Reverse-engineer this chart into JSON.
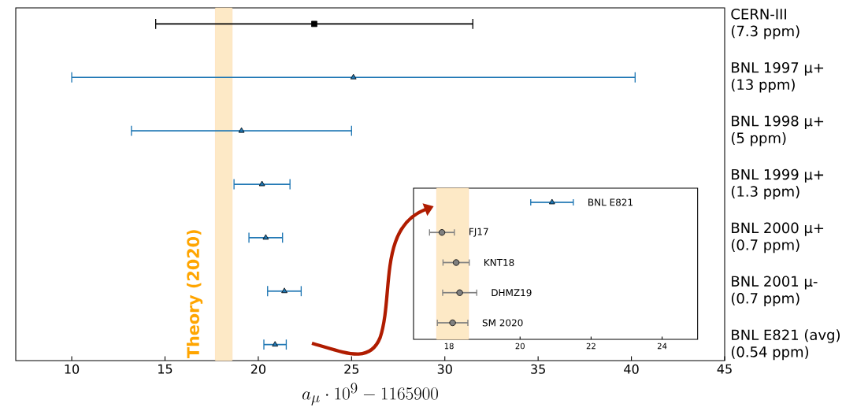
{
  "chart_data": [
    {
      "type": "scatter",
      "orientation": "horizontal",
      "categories": [
        "CERN-III\n(7.3 ppm)",
        "BNL 1997 μ+\n(13 ppm)",
        "BNL 1998 μ+\n(5 ppm)",
        "BNL 1999 μ+\n(1.3 ppm)",
        "BNL 2000 μ+\n(0.7 ppm)",
        "BNL 2001 μ-\n(0.7 ppm)",
        "BNL E821 (avg)\n(0.54 ppm)"
      ],
      "series": [
        {
          "color": "#000000",
          "marker": "square",
          "values": [
            23,
            null,
            null,
            null,
            null,
            null,
            null
          ],
          "errors": [
            8.5,
            null,
            null,
            null,
            null,
            null,
            null
          ]
        },
        {
          "color": "#1f77b4",
          "marker": "triangle",
          "values": [
            null,
            25.1,
            19.1,
            20.2,
            20.4,
            21.4,
            20.9
          ],
          "errors": [
            null,
            15.1,
            5.9,
            1.5,
            0.9,
            0.9,
            0.6
          ]
        }
      ],
      "xlabel": "a_\\mu \\cdot 10^9 - 1165900",
      "xlim": [
        7,
        45
      ],
      "xticks": [
        10,
        15,
        20,
        25,
        30,
        35,
        40,
        45
      ],
      "bands": [
        {
          "axis": "x",
          "from": 17.7,
          "to": 18.6,
          "label": "Theory (2020)",
          "color": "#fde9c6"
        }
      ]
    },
    {
      "type": "scatter",
      "orientation": "horizontal",
      "categories": [
        "BNL E821",
        "FJ17",
        "KNT18",
        "DHMZ19",
        "SM 2020"
      ],
      "series": [
        {
          "color": "#1f77b4",
          "marker": "triangle",
          "values": [
            20.9,
            null,
            null,
            null,
            null
          ],
          "errors": [
            0.6,
            null,
            null,
            null,
            null
          ]
        },
        {
          "color": "#808080",
          "marker": "circle",
          "values": [
            null,
            17.8,
            18.2,
            18.3,
            18.1
          ],
          "errors": [
            null,
            0.35,
            0.37,
            0.48,
            0.43
          ]
        }
      ],
      "xlim": [
        17,
        25
      ],
      "xticks": [
        18,
        20,
        22,
        24
      ],
      "tick_labels": "x",
      "bands": [
        {
          "axis": "x",
          "from": 17.65,
          "to": 18.55,
          "color": "#fde9c6"
        }
      ]
    }
  ]
}
